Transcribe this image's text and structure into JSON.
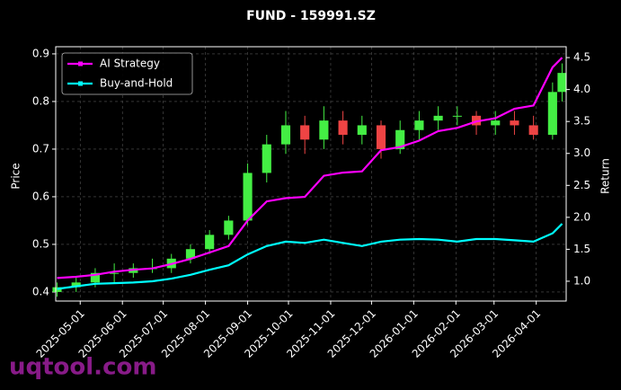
{
  "chart_data": {
    "type": "candlestick",
    "title": "FUND - 159991.SZ",
    "ylabel": "Price",
    "y2label": "Return",
    "watermark": "uqtool.com",
    "x": [
      "2025-04-14",
      "2025-04-28",
      "2025-05-12",
      "2025-05-26",
      "2025-06-09",
      "2025-06-23",
      "2025-07-07",
      "2025-07-21",
      "2025-08-04",
      "2025-08-18",
      "2025-09-01",
      "2025-09-15",
      "2025-09-29",
      "2025-10-13",
      "2025-10-27",
      "2025-11-10",
      "2025-11-24",
      "2025-12-08",
      "2025-12-22",
      "2026-01-05",
      "2026-01-19",
      "2026-02-02",
      "2026-02-16",
      "2026-03-02",
      "2026-03-16",
      "2026-03-30",
      "2026-04-13",
      "2026-04-20"
    ],
    "ohlc": {
      "open": [
        0.4,
        0.41,
        0.42,
        0.44,
        0.44,
        0.45,
        0.45,
        0.47,
        0.49,
        0.52,
        0.55,
        0.65,
        0.71,
        0.75,
        0.72,
        0.76,
        0.73,
        0.75,
        0.7,
        0.74,
        0.76,
        0.77,
        0.77,
        0.75,
        0.76,
        0.75,
        0.73,
        0.82
      ],
      "high": [
        0.42,
        0.43,
        0.45,
        0.46,
        0.46,
        0.47,
        0.48,
        0.5,
        0.53,
        0.56,
        0.67,
        0.73,
        0.78,
        0.77,
        0.79,
        0.78,
        0.77,
        0.76,
        0.76,
        0.78,
        0.79,
        0.79,
        0.78,
        0.78,
        0.78,
        0.77,
        0.84,
        0.88
      ],
      "low": [
        0.39,
        0.4,
        0.41,
        0.42,
        0.43,
        0.44,
        0.44,
        0.46,
        0.48,
        0.51,
        0.54,
        0.63,
        0.69,
        0.69,
        0.7,
        0.71,
        0.71,
        0.68,
        0.69,
        0.72,
        0.74,
        0.75,
        0.73,
        0.73,
        0.73,
        0.72,
        0.72,
        0.8
      ],
      "close": [
        0.41,
        0.42,
        0.44,
        0.44,
        0.45,
        0.45,
        0.47,
        0.49,
        0.52,
        0.55,
        0.65,
        0.71,
        0.75,
        0.72,
        0.76,
        0.73,
        0.75,
        0.7,
        0.74,
        0.76,
        0.77,
        0.77,
        0.75,
        0.76,
        0.75,
        0.73,
        0.82,
        0.86
      ]
    },
    "up_color": "#44ee44",
    "down_color": "#ee4444",
    "series": [
      {
        "name": "AI Strategy",
        "color": "#ff00ff",
        "axis": "y2",
        "values": [
          1.05,
          1.07,
          1.1,
          1.15,
          1.18,
          1.2,
          1.27,
          1.35,
          1.45,
          1.55,
          1.95,
          2.25,
          2.3,
          2.32,
          2.65,
          2.7,
          2.72,
          3.05,
          3.1,
          3.2,
          3.35,
          3.4,
          3.5,
          3.55,
          3.7,
          3.75,
          4.35,
          4.5
        ]
      },
      {
        "name": "Buy-and-Hold",
        "color": "#00ffff",
        "axis": "y2",
        "values": [
          0.88,
          0.92,
          0.96,
          0.97,
          0.98,
          1.0,
          1.04,
          1.1,
          1.18,
          1.25,
          1.42,
          1.55,
          1.62,
          1.6,
          1.65,
          1.6,
          1.55,
          1.62,
          1.65,
          1.66,
          1.65,
          1.62,
          1.66,
          1.66,
          1.64,
          1.62,
          1.75,
          1.9
        ]
      }
    ],
    "xlim": [
      "2025-04-13",
      "2026-04-23"
    ],
    "xticks": [
      "2025-05-01",
      "2025-06-01",
      "2025-07-01",
      "2025-08-01",
      "2025-09-01",
      "2025-10-01",
      "2025-11-01",
      "2025-12-01",
      "2026-01-01",
      "2026-02-01",
      "2026-03-01",
      "2026-04-01"
    ],
    "ylim": [
      0.381,
      0.915
    ],
    "yticks": [
      0.4,
      0.5,
      0.6,
      0.7,
      0.8,
      0.9
    ],
    "y2lim": [
      0.69,
      4.67
    ],
    "y2ticks": [
      {
        "value": 1,
        "label": "1.0"
      },
      1.5,
      {
        "value": 2,
        "label": "2.0"
      },
      2.5,
      {
        "value": 3,
        "label": "3.0"
      },
      3.5,
      {
        "value": 4,
        "label": "4.0"
      },
      4.5
    ],
    "grid": true,
    "legend": "upper left"
  }
}
